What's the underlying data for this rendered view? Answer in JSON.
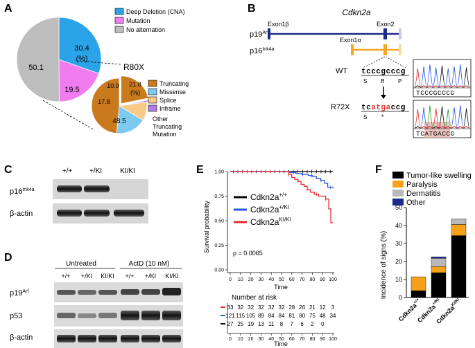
{
  "panel_labels": [
    "A",
    "B",
    "C",
    "D",
    "E",
    "F"
  ],
  "panelA": {
    "pie_main": {
      "slices": [
        {
          "value_label": "30.4",
          "value": 30.4,
          "unit": "(%)",
          "color": "#2aa3e8"
        },
        {
          "value_label": "19.5",
          "value": 19.5,
          "color": "#f07cf0"
        },
        {
          "value_label": "50.1",
          "value": 50.1,
          "color": "#bdbdbd"
        }
      ],
      "legend": [
        {
          "label": "Deep Deletion (CNA)",
          "color": "#2aa3e8"
        },
        {
          "label": "Mutation",
          "color": "#f07cf0"
        },
        {
          "label": "No alternation",
          "color": "#bdbdbd"
        }
      ]
    },
    "pie_sub": {
      "title": "R80X",
      "slices": [
        {
          "value_label": "21.8",
          "value": 21.8,
          "unit": "(%)",
          "color": "#c97a1c"
        },
        {
          "value_label": "1",
          "value": 1.0,
          "color": "#b07de8"
        },
        {
          "value_label": "10.9",
          "value": 10.9,
          "color": "#f8c987"
        },
        {
          "value_label": "17.8",
          "value": 17.8,
          "color": "#7ecbf2"
        },
        {
          "value_label": "48.5",
          "value": 48.5,
          "color": "#c97a1c"
        }
      ],
      "other_label": [
        "Other",
        "Truncating",
        "Mutation"
      ],
      "legend": [
        {
          "label": "Truncating",
          "color": "#c97a1c"
        },
        {
          "label": "Missense",
          "color": "#7ecbf2"
        },
        {
          "label": "Splice",
          "color": "#f8c987"
        },
        {
          "label": "Inframe",
          "color": "#b07de8"
        }
      ]
    }
  },
  "panelB": {
    "gene": "Cdkn2a",
    "exon1b": "Exon1β",
    "exon1a": "Exon1α",
    "exon2": "Exon2",
    "p19": {
      "main": "p19",
      "sup": "Arf"
    },
    "p16": {
      "main": "p16",
      "sup": "Ink4a"
    },
    "wt_label": "WT",
    "wt_seq": "tcccgcccg",
    "wt_aa": [
      "S",
      "R",
      "P"
    ],
    "mut_label": "R72X",
    "mut_seq": [
      "tc",
      "atga",
      "ccg"
    ],
    "mut_aa": [
      "S",
      "*"
    ],
    "chrom_wt": "TCCCGCCCG",
    "chrom_mut": [
      "TC",
      "ATGA",
      "CCG"
    ],
    "colors": {
      "p19": "#1b2a8c",
      "p16": "#f5a623",
      "mutation": "#e53935"
    }
  },
  "panelC": {
    "lanes": [
      "+/+",
      "+/KI",
      "KI/KI"
    ],
    "rows": [
      {
        "main": "p16",
        "sup": "Ink4a"
      },
      {
        "main": "β-actin",
        "sup": ""
      }
    ]
  },
  "panelD": {
    "groups": [
      "Untreated",
      "ActD (10 nM)"
    ],
    "lanes": [
      "+/+",
      "+/KI",
      "KI/KI",
      "+/+",
      "+/KI",
      "KI/KI"
    ],
    "rows": [
      {
        "main": "p19",
        "sup": "Arf"
      },
      {
        "main": "p53",
        "sup": ""
      },
      {
        "main": "β-actin",
        "sup": ""
      }
    ]
  },
  "panelE": {
    "chart_data": {
      "type": "line",
      "xlabel": "Time",
      "ylabel": "Survival probability",
      "xlim": [
        0,
        100
      ],
      "ylim": [
        0,
        1
      ],
      "xticks": [
        0,
        10,
        20,
        30,
        40,
        50,
        60,
        70,
        80,
        90,
        100
      ],
      "yticks": [
        "0.00",
        "0.25",
        "0.50",
        "0.75",
        "1.00"
      ],
      "pvalue": "p = 0.0065",
      "series": [
        {
          "name_main": "Cdkn2a",
          "name_sup": "+/+",
          "color": "#000000",
          "x": [
            0,
            100
          ],
          "y": [
            1.0,
            1.0
          ]
        },
        {
          "name_main": "Cdkn2a",
          "name_sup": "+/KI",
          "color": "#2b55e6",
          "x": [
            0,
            52,
            58,
            64,
            70,
            76,
            80,
            84,
            88,
            92,
            95,
            100
          ],
          "y": [
            1.0,
            1.0,
            0.99,
            0.98,
            0.97,
            0.96,
            0.95,
            0.93,
            0.91,
            0.88,
            0.84,
            0.83
          ]
        },
        {
          "name_main": "Cdkn2a",
          "name_sup": "KI/KI",
          "color": "#e52b2b",
          "x": [
            0,
            55,
            57,
            60,
            63,
            66,
            69,
            72,
            75,
            78,
            82,
            86,
            90,
            93,
            96,
            98,
            100
          ],
          "y": [
            1.0,
            1.0,
            0.97,
            0.94,
            0.92,
            0.9,
            0.87,
            0.85,
            0.82,
            0.79,
            0.77,
            0.75,
            0.75,
            0.72,
            0.62,
            0.48,
            0.48
          ]
        }
      ]
    },
    "risk": {
      "title": "Number at risk",
      "xlabel": "Time",
      "rows": [
        {
          "color": "#e52b2b",
          "values": [
            "33",
            "32",
            "32",
            "32",
            "32",
            "32",
            "28",
            "26",
            "21",
            "12",
            "3"
          ]
        },
        {
          "color": "#2b55e6",
          "values": [
            "121",
            "115",
            "105",
            "89",
            "84",
            "84",
            "81",
            "80",
            "75",
            "48",
            "34"
          ]
        },
        {
          "color": "#000000",
          "values": [
            "27",
            "25",
            "19",
            "13",
            "11",
            "8",
            "7",
            "6",
            "2",
            "0",
            ""
          ]
        }
      ]
    }
  },
  "panelF": {
    "chart_data": {
      "type": "bar",
      "stacked": true,
      "ylabel": "Incidence of signs (%)",
      "ylim": [
        0,
        50
      ],
      "yticks": [
        0,
        10,
        20,
        30,
        40,
        50
      ],
      "categories": [
        {
          "main": "Cdkn2a",
          "sup": "+/+"
        },
        {
          "main": "Cdkn2a",
          "sup": "+/KI"
        },
        {
          "main": "Cdkn2a",
          "sup": "KI/KI"
        }
      ],
      "series": [
        {
          "name": "Tumor-like swelling",
          "color": "#000000",
          "values": [
            3.8,
            13.8,
            34.4
          ]
        },
        {
          "name": "Paralysis",
          "color": "#f5a11a",
          "values": [
            7.7,
            3.4,
            6.2
          ]
        },
        {
          "name": "Dermatitis",
          "color": "#b9b9b9",
          "values": [
            0,
            4.6,
            3.1
          ]
        },
        {
          "name": "Other",
          "color": "#1b2a8c",
          "values": [
            0,
            0.8,
            0
          ]
        }
      ]
    }
  }
}
